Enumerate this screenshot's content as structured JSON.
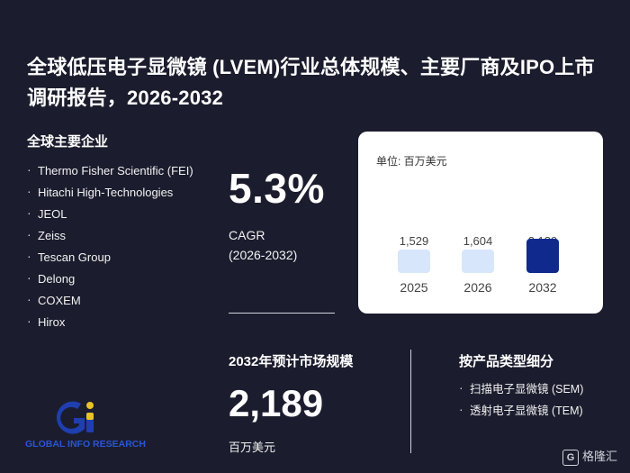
{
  "title": "全球低压电子显微镜 (LVEM)行业总体规模、主要厂商及IPO上市调研报告，2026-2032",
  "companies": {
    "heading": "全球主要企业",
    "items": [
      "Thermo Fisher Scientific (FEI)",
      "Hitachi High-Technologies",
      "JEOL",
      "Zeiss",
      "Tescan Group",
      "Delong",
      "COXEM",
      "Hirox"
    ]
  },
  "cagr": {
    "value": "5.3%",
    "label": "CAGR",
    "period": "(2026-2032)"
  },
  "chart_data": {
    "type": "bar",
    "unit_label": "单位: 百万美元",
    "categories": [
      "2025",
      "2026",
      "2032"
    ],
    "values": [
      1529,
      1604,
      2189
    ],
    "value_labels": [
      "1,529",
      "1,604",
      "2,189"
    ],
    "colors": [
      "#d7e6fb",
      "#d7e6fb",
      "#0f2a8c"
    ],
    "note": "bars drawn with equal height; values shown as labels"
  },
  "market": {
    "heading": "2032年预计市场规模",
    "value": "2,189",
    "unit": "百万美元"
  },
  "segments": {
    "heading": "按产品类型细分",
    "items": [
      "扫描电子显微镜 (SEM)",
      "透射电子显微镜 (TEM)"
    ]
  },
  "logo": {
    "text": "GLOBAL INFO RESEARCH",
    "letters": "Gi",
    "color_blue": "#1f3fb0",
    "color_yellow": "#e8c326"
  },
  "watermark": {
    "text": "格隆汇",
    "icon": "G"
  }
}
